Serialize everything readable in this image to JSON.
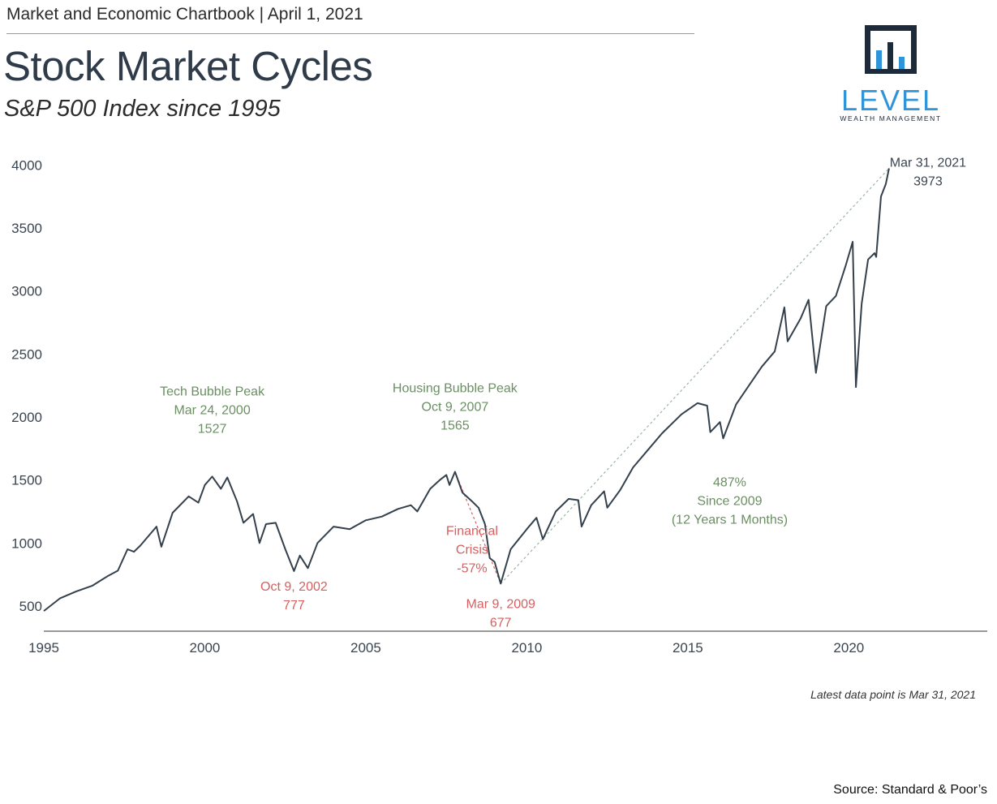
{
  "header": {
    "line": "Market and Economic Chartbook | April 1, 2021",
    "title": "Stock Market Cycles",
    "subtitle": "S&P 500 Index since 1995"
  },
  "logo": {
    "word": "LEVEL",
    "sub": "WEALTH MANAGEMENT"
  },
  "footer": {
    "latest": "Latest data point is Mar 31, 2021",
    "source": "Source: Standard & Poor’s"
  },
  "colors": {
    "line": "#34404c",
    "green": "#6a8f62",
    "red": "#d65f5f",
    "trend": "#9ab5a5",
    "logo_dark": "#1c2a3a",
    "logo_blue": "#2f94d8"
  },
  "chart_data": {
    "type": "line",
    "title": "Stock Market Cycles",
    "subtitle": "S&P 500 Index since 1995",
    "xlabel": "",
    "ylabel": "",
    "xlim": [
      1995,
      2024.3
    ],
    "ylim": [
      300,
      4150
    ],
    "x_ticks": [
      1995,
      2000,
      2005,
      2010,
      2015,
      2020
    ],
    "y_ticks": [
      500,
      1000,
      1500,
      2000,
      2500,
      3000,
      3500,
      4000
    ],
    "grid": false,
    "series": [
      {
        "name": "S&P 500 Index",
        "points": [
          [
            1995.0,
            460
          ],
          [
            1995.5,
            560
          ],
          [
            1996.0,
            615
          ],
          [
            1996.5,
            660
          ],
          [
            1997.0,
            740
          ],
          [
            1997.3,
            780
          ],
          [
            1997.6,
            950
          ],
          [
            1997.8,
            930
          ],
          [
            1998.0,
            980
          ],
          [
            1998.5,
            1130
          ],
          [
            1998.65,
            970
          ],
          [
            1999.0,
            1240
          ],
          [
            1999.5,
            1370
          ],
          [
            1999.8,
            1320
          ],
          [
            2000.0,
            1460
          ],
          [
            2000.23,
            1527
          ],
          [
            2000.5,
            1430
          ],
          [
            2000.7,
            1520
          ],
          [
            2001.0,
            1330
          ],
          [
            2001.2,
            1160
          ],
          [
            2001.5,
            1230
          ],
          [
            2001.7,
            1000
          ],
          [
            2001.9,
            1150
          ],
          [
            2002.2,
            1160
          ],
          [
            2002.5,
            950
          ],
          [
            2002.77,
            777
          ],
          [
            2002.95,
            900
          ],
          [
            2003.2,
            800
          ],
          [
            2003.5,
            1000
          ],
          [
            2004.0,
            1130
          ],
          [
            2004.5,
            1110
          ],
          [
            2005.0,
            1180
          ],
          [
            2005.5,
            1210
          ],
          [
            2006.0,
            1270
          ],
          [
            2006.4,
            1300
          ],
          [
            2006.6,
            1250
          ],
          [
            2007.0,
            1430
          ],
          [
            2007.3,
            1500
          ],
          [
            2007.5,
            1540
          ],
          [
            2007.6,
            1460
          ],
          [
            2007.77,
            1565
          ],
          [
            2008.0,
            1400
          ],
          [
            2008.3,
            1330
          ],
          [
            2008.5,
            1280
          ],
          [
            2008.7,
            1150
          ],
          [
            2008.85,
            880
          ],
          [
            2009.0,
            850
          ],
          [
            2009.19,
            677
          ],
          [
            2009.5,
            950
          ],
          [
            2010.0,
            1110
          ],
          [
            2010.3,
            1200
          ],
          [
            2010.5,
            1030
          ],
          [
            2010.9,
            1250
          ],
          [
            2011.3,
            1350
          ],
          [
            2011.6,
            1340
          ],
          [
            2011.7,
            1130
          ],
          [
            2012.0,
            1300
          ],
          [
            2012.4,
            1410
          ],
          [
            2012.5,
            1280
          ],
          [
            2012.9,
            1420
          ],
          [
            2013.3,
            1600
          ],
          [
            2013.8,
            1750
          ],
          [
            2014.2,
            1870
          ],
          [
            2014.8,
            2020
          ],
          [
            2015.3,
            2110
          ],
          [
            2015.6,
            2090
          ],
          [
            2015.7,
            1880
          ],
          [
            2016.0,
            1960
          ],
          [
            2016.1,
            1830
          ],
          [
            2016.5,
            2100
          ],
          [
            2016.9,
            2250
          ],
          [
            2017.3,
            2400
          ],
          [
            2017.7,
            2520
          ],
          [
            2018.0,
            2870
          ],
          [
            2018.1,
            2600
          ],
          [
            2018.5,
            2780
          ],
          [
            2018.75,
            2930
          ],
          [
            2018.98,
            2350
          ],
          [
            2019.3,
            2880
          ],
          [
            2019.6,
            2960
          ],
          [
            2019.9,
            3200
          ],
          [
            2020.12,
            3390
          ],
          [
            2020.22,
            2237
          ],
          [
            2020.4,
            2900
          ],
          [
            2020.6,
            3250
          ],
          [
            2020.8,
            3300
          ],
          [
            2020.85,
            3270
          ],
          [
            2021.0,
            3750
          ],
          [
            2021.15,
            3850
          ],
          [
            2021.25,
            3973
          ]
        ]
      }
    ],
    "trendline": {
      "from": [
        2009.19,
        677
      ],
      "to": [
        2021.25,
        3973
      ]
    },
    "crash_line": {
      "from": [
        2007.77,
        1565
      ],
      "to": [
        2009.19,
        677
      ]
    },
    "annotations": [
      {
        "x": 2000.23,
        "y": 1527,
        "class": "green",
        "lines": [
          "Tech Bubble Peak",
          "Mar 24, 2000",
          "1527"
        ]
      },
      {
        "x": 2007.77,
        "y": 1565,
        "class": "green",
        "lines": [
          "Housing Bubble Peak",
          "Oct 9, 2007",
          "1565"
        ]
      },
      {
        "x": 2002.77,
        "y": 777,
        "class": "red",
        "lines": [
          "Oct 9, 2002",
          "777"
        ]
      },
      {
        "x": 2009.19,
        "y": 677,
        "class": "red",
        "lines": [
          "Mar 9, 2009",
          "677"
        ]
      },
      {
        "x": 2008.3,
        "y": 1050,
        "class": "red",
        "lines": [
          "Financial",
          "Crisis",
          "-57%"
        ]
      },
      {
        "x": 2016.3,
        "y": 1450,
        "class": "green",
        "lines": [
          "487%",
          "Since 2009",
          "(12 Years 1 Months)"
        ]
      },
      {
        "x": 2021.25,
        "y": 3973,
        "class": "dark",
        "lines": [
          "Mar 31, 2021",
          "3973"
        ]
      }
    ]
  }
}
